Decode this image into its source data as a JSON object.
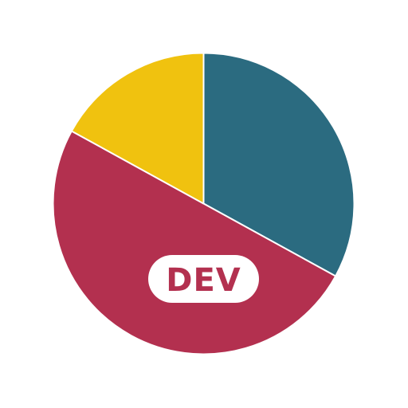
{
  "logo": {
    "badge_label": "DEV",
    "colors": {
      "teal": "#2b6b80",
      "crimson": "#b3304f",
      "yellow": "#f0c20f",
      "separator": "#ffffff",
      "badge_bg": "#ffffff"
    },
    "segments": [
      {
        "name": "teal-segment",
        "value": 0.33,
        "color_key": "teal"
      },
      {
        "name": "crimson-segment",
        "value": 0.5,
        "color_key": "crimson"
      },
      {
        "name": "yellow-segment",
        "value": 0.17,
        "color_key": "yellow"
      }
    ]
  }
}
